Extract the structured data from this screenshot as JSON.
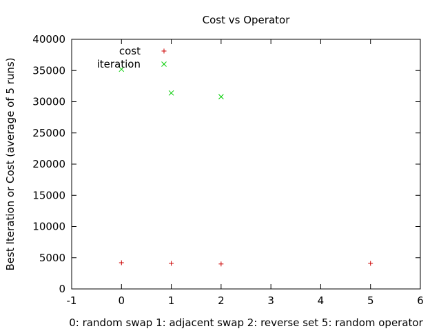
{
  "chart_data": {
    "type": "scatter",
    "title": "Cost vs Operator",
    "xlabel": "0: random swap 1: adjacent swap 2: reverse set 5: random operator",
    "ylabel": "Best Iteration or Cost (average of 5 runs)",
    "xlim": [
      -1,
      6
    ],
    "ylim": [
      0,
      40000
    ],
    "x_ticks": [
      -1,
      0,
      1,
      2,
      3,
      4,
      5,
      6
    ],
    "y_ticks": [
      0,
      5000,
      10000,
      15000,
      20000,
      25000,
      30000,
      35000,
      40000
    ],
    "grid": false,
    "legend_position": "top-left",
    "series": [
      {
        "name": "cost",
        "marker": "+",
        "color": "#cc0000",
        "points": [
          {
            "x": 0,
            "y": 4200
          },
          {
            "x": 1,
            "y": 4100
          },
          {
            "x": 2,
            "y": 4000
          },
          {
            "x": 5,
            "y": 4100
          }
        ]
      },
      {
        "name": "iteration",
        "marker": "x",
        "color": "#00cc00",
        "points": [
          {
            "x": 0,
            "y": 35200
          },
          {
            "x": 1,
            "y": 31400
          },
          {
            "x": 2,
            "y": 30800
          }
        ]
      }
    ]
  }
}
